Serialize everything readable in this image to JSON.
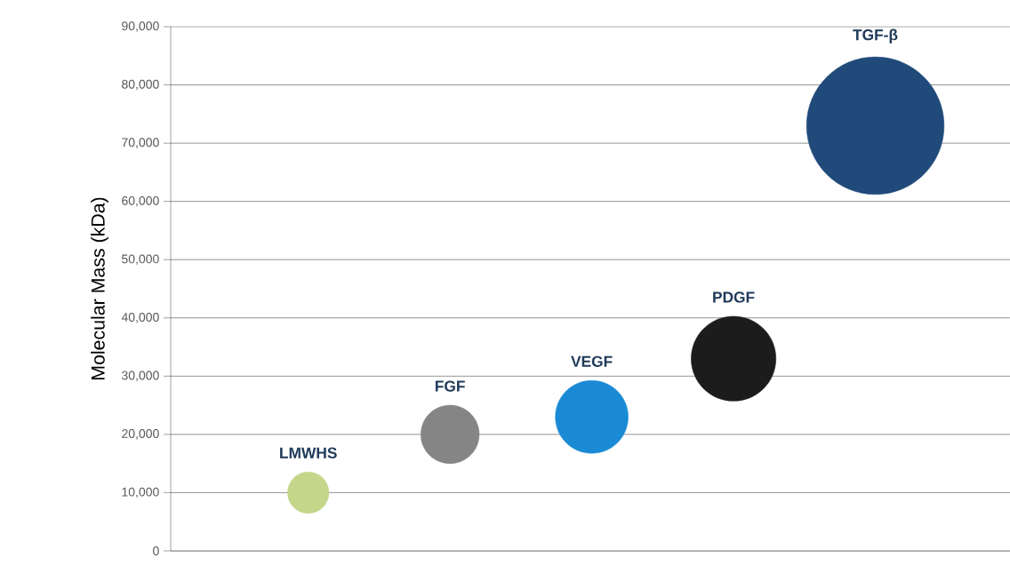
{
  "chart_data": {
    "type": "bubble",
    "ylabel": "Molecular Mass (kDa)",
    "categories": [
      "LMWHS",
      "FGF",
      "VEGF",
      "PDGF",
      "TGF-β"
    ],
    "values": [
      10000,
      20000,
      23000,
      33000,
      73000
    ],
    "sizes": [
      0.09,
      0.18,
      0.28,
      0.38,
      1
    ],
    "colors": [
      "#c3d68a",
      "#858585",
      "#1a8ad4",
      "#1c1c1c",
      "#204a7a"
    ],
    "ylim": [
      0,
      90000
    ],
    "yticks": [
      {
        "value": 0,
        "label": "0"
      },
      {
        "value": 10000,
        "label": "10,000"
      },
      {
        "value": 20000,
        "label": "20,000"
      },
      {
        "value": 30000,
        "label": "30,000"
      },
      {
        "value": 40000,
        "label": "40,000"
      },
      {
        "value": 50000,
        "label": "50,000"
      },
      {
        "value": 60000,
        "label": "60,000"
      },
      {
        "value": 70000,
        "label": "70,000"
      },
      {
        "value": 80000,
        "label": "80,000"
      },
      {
        "value": 90000,
        "label": "90,000"
      }
    ],
    "grid": "y",
    "tick_labels": "y"
  }
}
